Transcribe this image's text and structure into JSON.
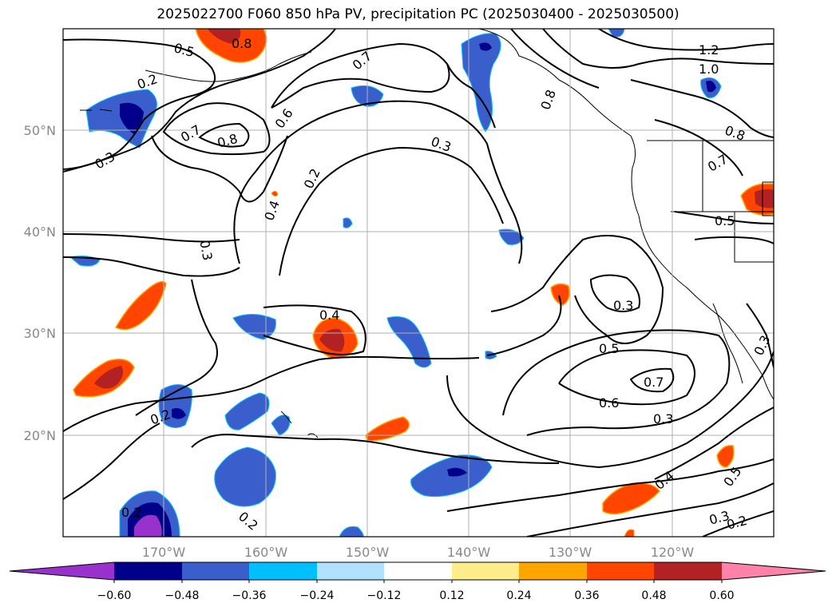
{
  "title": "2025022700 F060 850 hPa PV, precipitation PC (2025030400 - 2025030500)",
  "lat_labels": [
    "50°N",
    "40°N",
    "30°N",
    "20°N"
  ],
  "lon_labels": [
    "170°W",
    "160°W",
    "150°W",
    "140°W",
    "130°W",
    "120°W"
  ],
  "contour_labels": [
    "0.8",
    "0.5",
    "0.7",
    "0.2",
    "0.3",
    "0.7",
    "0.8",
    "0.6",
    "0.3",
    "0.2",
    "0.4",
    "0.3",
    "0.4",
    "0.2",
    "0.2",
    "0.3",
    "0.5",
    "0.7",
    "0.6",
    "0.3",
    "0.4",
    "0.5",
    "0.3",
    "0.2",
    "0.2",
    "0.8",
    "1.2",
    "1.0",
    "0.8",
    "0.7",
    "0.5",
    "0.3"
  ],
  "colorbar": {
    "ticks": [
      "−0.60",
      "−0.48",
      "−0.36",
      "−0.24",
      "−0.12",
      "0.12",
      "0.24",
      "0.36",
      "0.48",
      "0.60"
    ],
    "colors": [
      "#9932cc",
      "#00008b",
      "#3a5fcd",
      "#00bfff",
      "#b0e2ff",
      "#ffffff",
      "#ffec8b",
      "#ffa500",
      "#ff4500",
      "#b22222",
      "#ff82ab"
    ]
  }
}
